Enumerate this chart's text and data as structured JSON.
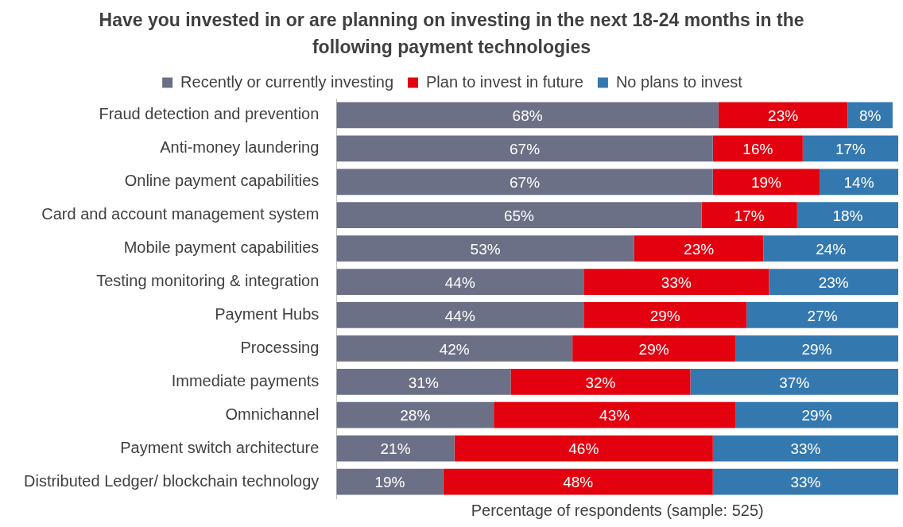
{
  "chart_data": {
    "type": "bar",
    "orientation": "horizontal",
    "stacked": true,
    "title": "Have you invested in or are planning on investing in the next 18-24 months in the following payment technologies",
    "xlabel": "Percentage of respondents (sample: 525)",
    "categories": [
      "Fraud detection and prevention",
      "Anti-money laundering",
      "Online payment capabilities",
      "Card and account management system",
      "Mobile payment capabilities",
      "Testing monitoring & integration",
      "Payment Hubs",
      "Processing",
      "Immediate payments",
      "Omnichannel",
      "Payment switch architecture",
      "Distributed Ledger/ blockchain technology"
    ],
    "series": [
      {
        "name": "Recently or currently investing",
        "color": "#6b7086",
        "values": [
          68,
          67,
          67,
          65,
          53,
          44,
          44,
          42,
          31,
          28,
          21,
          19
        ],
        "value_labels": [
          "68%",
          "67%",
          "67%",
          "65%",
          "53%",
          "44%",
          "44%",
          "42%",
          "31%",
          "28%",
          "21%",
          "19%"
        ]
      },
      {
        "name": "Plan to invest in future",
        "color": "#e3000f",
        "values": [
          23,
          16,
          19,
          17,
          23,
          33,
          29,
          29,
          32,
          43,
          46,
          48
        ],
        "value_labels": [
          "23%",
          "16%",
          "19%",
          "17%",
          "23%",
          "33%",
          "29%",
          "29%",
          "32%",
          "43%",
          "46%",
          "48%"
        ]
      },
      {
        "name": "No plans to invest",
        "color": "#3478b0",
        "values": [
          8,
          17,
          14,
          18,
          24,
          23,
          27,
          29,
          37,
          29,
          33,
          33
        ],
        "value_labels": [
          "8%",
          "17%",
          "14%",
          "18%",
          "24%",
          "23%",
          "27%",
          "29%",
          "37%",
          "29%",
          "33%",
          "33%"
        ]
      }
    ],
    "legend": "top",
    "grid": false,
    "tick_labels": "y"
  }
}
